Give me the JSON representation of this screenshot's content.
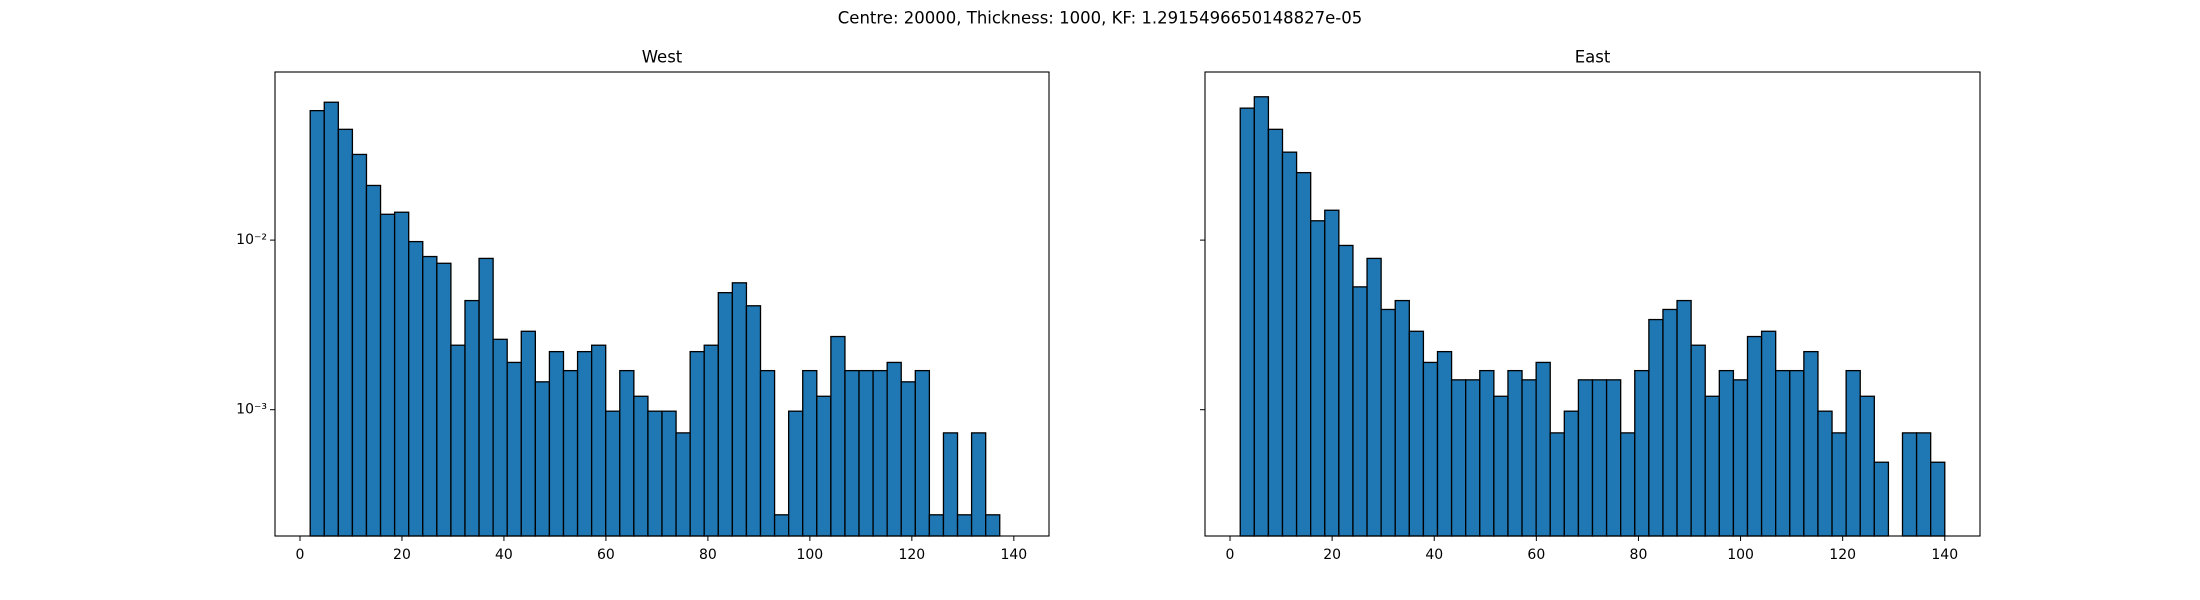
{
  "title": "Centre: 20000, Thickness: 1000, KF: 1.2915496650148827e-05",
  "chart_data": [
    {
      "type": "histogram",
      "title": "West",
      "color": "#1f77b4",
      "edgecolor": "#000000",
      "log_y": true,
      "bins": [
        2,
        4.76,
        7.52,
        10.28,
        13.04,
        15.8,
        18.56,
        21.32,
        24.08,
        26.84,
        29.6,
        32.36,
        35.12,
        37.88,
        40.64,
        43.4,
        46.16,
        48.92,
        51.68,
        54.44,
        57.2,
        59.96,
        62.72,
        65.48,
        68.24,
        71,
        73.76,
        76.52,
        79.28,
        82.04,
        84.8,
        87.56,
        90.32,
        93.08,
        95.84,
        98.6,
        101.36,
        104.12,
        106.88,
        109.64,
        112.4,
        115.16,
        117.92,
        120.68,
        123.44,
        126.2,
        128.96,
        131.72,
        134.48,
        137.24,
        140
      ],
      "values": [
        0.058,
        0.065,
        0.045,
        0.032,
        0.021,
        0.0142,
        0.0146,
        0.0098,
        0.008,
        0.0073,
        0.0024,
        0.0044,
        0.0078,
        0.0026,
        0.0019,
        0.0029,
        0.00146,
        0.0022,
        0.0017,
        0.0022,
        0.0024,
        0.00098,
        0.0017,
        0.0012,
        0.00098,
        0.00098,
        0.00073,
        0.0022,
        0.0024,
        0.0049,
        0.0056,
        0.0041,
        0.0017,
        0.00024,
        0.00098,
        0.0017,
        0.0012,
        0.0027,
        0.0017,
        0.0017,
        0.0017,
        0.0019,
        0.00146,
        0.0017,
        0.00024,
        0.00073,
        0.00024,
        0.00073,
        0.00024,
        0
      ],
      "xlim": [
        -4.9,
        146.9
      ],
      "xticks": [
        0,
        20,
        40,
        60,
        80,
        100,
        120,
        140
      ],
      "ylim": [
        0.00018,
        0.098
      ],
      "yticks": [
        {
          "value": 0.01,
          "label": "10⁻²"
        },
        {
          "value": 0.001,
          "label": "10⁻³"
        }
      ]
    },
    {
      "type": "histogram",
      "title": "East",
      "color": "#1f77b4",
      "edgecolor": "#000000",
      "log_y": true,
      "sharey": true,
      "bins": [
        2,
        4.76,
        7.52,
        10.28,
        13.04,
        15.8,
        18.56,
        21.32,
        24.08,
        26.84,
        29.6,
        32.36,
        35.12,
        37.88,
        40.64,
        43.4,
        46.16,
        48.92,
        51.68,
        54.44,
        57.2,
        59.96,
        62.72,
        65.48,
        68.24,
        71,
        73.76,
        76.52,
        79.28,
        82.04,
        84.8,
        87.56,
        90.32,
        93.08,
        95.84,
        98.6,
        101.36,
        104.12,
        106.88,
        109.64,
        112.4,
        115.16,
        117.92,
        120.68,
        123.44,
        126.2,
        128.96,
        131.72,
        134.48,
        137.24,
        140
      ],
      "values": [
        0.06,
        0.07,
        0.045,
        0.033,
        0.025,
        0.013,
        0.015,
        0.0093,
        0.0053,
        0.0078,
        0.0039,
        0.0044,
        0.0029,
        0.0019,
        0.0022,
        0.0015,
        0.0015,
        0.0017,
        0.0012,
        0.0017,
        0.0015,
        0.0019,
        0.00073,
        0.00098,
        0.0015,
        0.0015,
        0.0015,
        0.00073,
        0.0017,
        0.0034,
        0.0039,
        0.0044,
        0.0024,
        0.0012,
        0.0017,
        0.0015,
        0.0027,
        0.0029,
        0.0017,
        0.0017,
        0.0022,
        0.00098,
        0.00073,
        0.0017,
        0.0012,
        0.00049,
        0,
        0.00073,
        0.00073,
        0.00049
      ],
      "xlim": [
        -4.9,
        146.9
      ],
      "xticks": [
        0,
        20,
        40,
        60,
        80,
        100,
        120,
        140
      ]
    }
  ]
}
